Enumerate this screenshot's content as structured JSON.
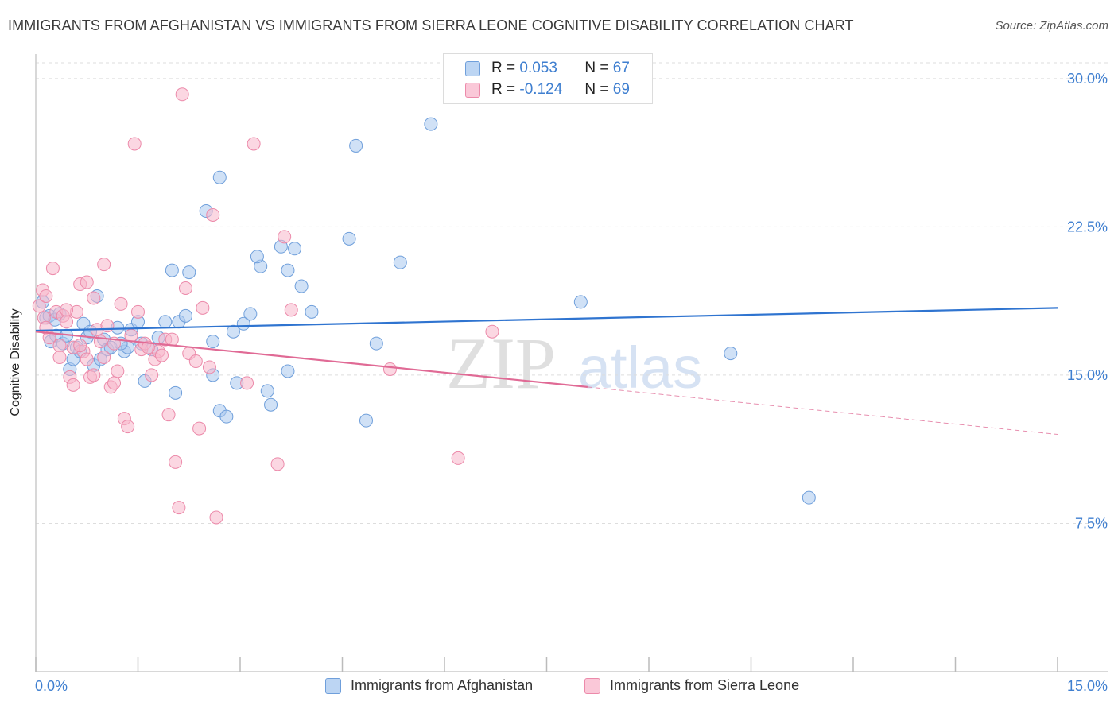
{
  "title": "IMMIGRANTS FROM AFGHANISTAN VS IMMIGRANTS FROM SIERRA LEONE COGNITIVE DISABILITY CORRELATION CHART",
  "source": "Source: ZipAtlas.com",
  "watermark": {
    "zip": "ZIP",
    "atlas": "atlas"
  },
  "colors": {
    "blue_fill": "#a9c8ef",
    "blue_stroke": "#6f9fdb",
    "blue_line": "#2f74d0",
    "pink_fill": "#f7b7cb",
    "pink_stroke": "#ec8aaa",
    "pink_line": "#e06a95",
    "axis_label": "#3f7fd0",
    "grid": "#dddddd"
  },
  "legend_top": [
    {
      "r_label": "R =",
      "r_value": "0.053",
      "n_label": "N =",
      "n_value": "67"
    },
    {
      "r_label": "R =",
      "r_value": "-0.124",
      "n_label": "N =",
      "n_value": "69"
    }
  ],
  "chart_data": {
    "type": "scatter",
    "title": "IMMIGRANTS FROM AFGHANISTAN VS IMMIGRANTS FROM SIERRA LEONE COGNITIVE DISABILITY CORRELATION CHART",
    "xlabel": "",
    "ylabel": "Cognitive Disability",
    "xlim": [
      0,
      15
    ],
    "ylim": [
      0,
      31
    ],
    "x_tick_labels": [
      "0.0%",
      "15.0%"
    ],
    "y_ticks": [
      7.5,
      15.0,
      22.5,
      30.0
    ],
    "y_tick_labels": [
      "7.5%",
      "15.0%",
      "22.5%",
      "30.0%"
    ],
    "grid": true,
    "legend_position": "bottom",
    "series": [
      {
        "name": "Immigrants from Afghanistan",
        "color": "#a9c8ef",
        "trend": {
          "x": [
            0.0,
            15.0
          ],
          "y": [
            17.25,
            18.4
          ]
        },
        "points": [
          [
            0.1,
            18.7
          ],
          [
            0.15,
            17.9
          ],
          [
            0.2,
            18.0
          ],
          [
            0.22,
            16.7
          ],
          [
            0.28,
            17.8
          ],
          [
            0.3,
            17.0
          ],
          [
            0.4,
            16.6
          ],
          [
            0.45,
            17.0
          ],
          [
            0.5,
            15.3
          ],
          [
            0.55,
            15.8
          ],
          [
            0.6,
            16.4
          ],
          [
            0.7,
            17.6
          ],
          [
            0.75,
            16.9
          ],
          [
            0.8,
            17.2
          ],
          [
            0.85,
            15.5
          ],
          [
            0.9,
            19.0
          ],
          [
            1.0,
            16.8
          ],
          [
            1.05,
            16.3
          ],
          [
            1.1,
            16.4
          ],
          [
            1.2,
            17.4
          ],
          [
            1.3,
            16.2
          ],
          [
            1.35,
            16.4
          ],
          [
            1.4,
            17.3
          ],
          [
            1.5,
            17.7
          ],
          [
            1.55,
            16.6
          ],
          [
            1.6,
            14.7
          ],
          [
            1.7,
            16.3
          ],
          [
            1.8,
            16.9
          ],
          [
            1.9,
            17.7
          ],
          [
            2.0,
            20.3
          ],
          [
            2.05,
            14.1
          ],
          [
            2.1,
            17.7
          ],
          [
            2.2,
            18.0
          ],
          [
            2.25,
            20.2
          ],
          [
            2.6,
            16.7
          ],
          [
            2.6,
            15.0
          ],
          [
            2.7,
            13.2
          ],
          [
            2.8,
            12.9
          ],
          [
            2.9,
            17.2
          ],
          [
            2.95,
            14.6
          ],
          [
            3.05,
            17.6
          ],
          [
            3.15,
            18.1
          ],
          [
            3.3,
            20.5
          ],
          [
            3.4,
            14.2
          ],
          [
            3.45,
            13.5
          ],
          [
            3.6,
            21.5
          ],
          [
            3.7,
            15.2
          ],
          [
            3.9,
            19.5
          ],
          [
            4.05,
            18.2
          ],
          [
            4.6,
            21.9
          ],
          [
            4.7,
            26.6
          ],
          [
            4.85,
            12.7
          ],
          [
            5.0,
            16.6
          ],
          [
            5.35,
            20.7
          ],
          [
            5.8,
            27.7
          ],
          [
            8.0,
            18.7
          ],
          [
            10.2,
            16.1
          ],
          [
            11.35,
            8.8
          ],
          [
            2.7,
            25.0
          ],
          [
            2.5,
            23.3
          ],
          [
            3.25,
            21.0
          ],
          [
            3.8,
            21.4
          ],
          [
            3.7,
            20.3
          ],
          [
            0.35,
            18.1
          ],
          [
            0.65,
            16.2
          ],
          [
            0.95,
            15.8
          ],
          [
            1.25,
            16.6
          ]
        ]
      },
      {
        "name": "Immigrants from Sierra Leone",
        "color": "#f7b7cb",
        "trend": {
          "x": [
            0.0,
            8.1
          ],
          "y": [
            17.2,
            14.4
          ]
        },
        "trend_dashed": {
          "x": [
            8.1,
            15.0
          ],
          "y": [
            14.4,
            12.0
          ]
        },
        "points": [
          [
            0.05,
            18.5
          ],
          [
            0.1,
            19.3
          ],
          [
            0.12,
            17.9
          ],
          [
            0.15,
            17.4
          ],
          [
            0.2,
            16.9
          ],
          [
            0.25,
            20.4
          ],
          [
            0.3,
            18.2
          ],
          [
            0.35,
            16.5
          ],
          [
            0.4,
            18.0
          ],
          [
            0.45,
            17.7
          ],
          [
            0.5,
            14.9
          ],
          [
            0.55,
            14.5
          ],
          [
            0.6,
            18.2
          ],
          [
            0.65,
            19.6
          ],
          [
            0.7,
            16.2
          ],
          [
            0.75,
            15.8
          ],
          [
            0.8,
            14.9
          ],
          [
            0.85,
            15.0
          ],
          [
            0.9,
            17.3
          ],
          [
            0.95,
            16.7
          ],
          [
            1.0,
            15.9
          ],
          [
            1.05,
            17.5
          ],
          [
            1.1,
            14.4
          ],
          [
            1.15,
            16.6
          ],
          [
            1.2,
            15.2
          ],
          [
            1.3,
            12.8
          ],
          [
            1.35,
            12.4
          ],
          [
            1.4,
            17.0
          ],
          [
            1.5,
            18.2
          ],
          [
            1.55,
            16.3
          ],
          [
            1.6,
            16.6
          ],
          [
            1.7,
            15.0
          ],
          [
            1.75,
            15.8
          ],
          [
            1.8,
            16.2
          ],
          [
            1.9,
            16.8
          ],
          [
            1.95,
            13.0
          ],
          [
            2.05,
            10.6
          ],
          [
            2.1,
            8.3
          ],
          [
            2.15,
            29.2
          ],
          [
            2.2,
            19.4
          ],
          [
            2.25,
            16.1
          ],
          [
            2.4,
            12.3
          ],
          [
            2.45,
            18.4
          ],
          [
            2.55,
            15.4
          ],
          [
            2.6,
            23.1
          ],
          [
            2.65,
            7.8
          ],
          [
            1.45,
            26.7
          ],
          [
            3.2,
            26.7
          ],
          [
            3.55,
            10.5
          ],
          [
            3.65,
            22.0
          ],
          [
            3.75,
            18.3
          ],
          [
            5.2,
            15.3
          ],
          [
            6.2,
            10.8
          ],
          [
            6.7,
            17.2
          ],
          [
            3.1,
            14.6
          ],
          [
            1.0,
            20.6
          ],
          [
            0.35,
            15.9
          ],
          [
            0.55,
            16.4
          ],
          [
            0.75,
            19.7
          ],
          [
            1.25,
            18.6
          ],
          [
            1.65,
            16.4
          ],
          [
            1.85,
            16.0
          ],
          [
            2.0,
            16.8
          ],
          [
            2.35,
            15.7
          ],
          [
            0.15,
            19.0
          ],
          [
            0.65,
            16.5
          ],
          [
            1.15,
            14.6
          ],
          [
            0.45,
            18.3
          ],
          [
            0.85,
            18.9
          ]
        ]
      }
    ]
  }
}
